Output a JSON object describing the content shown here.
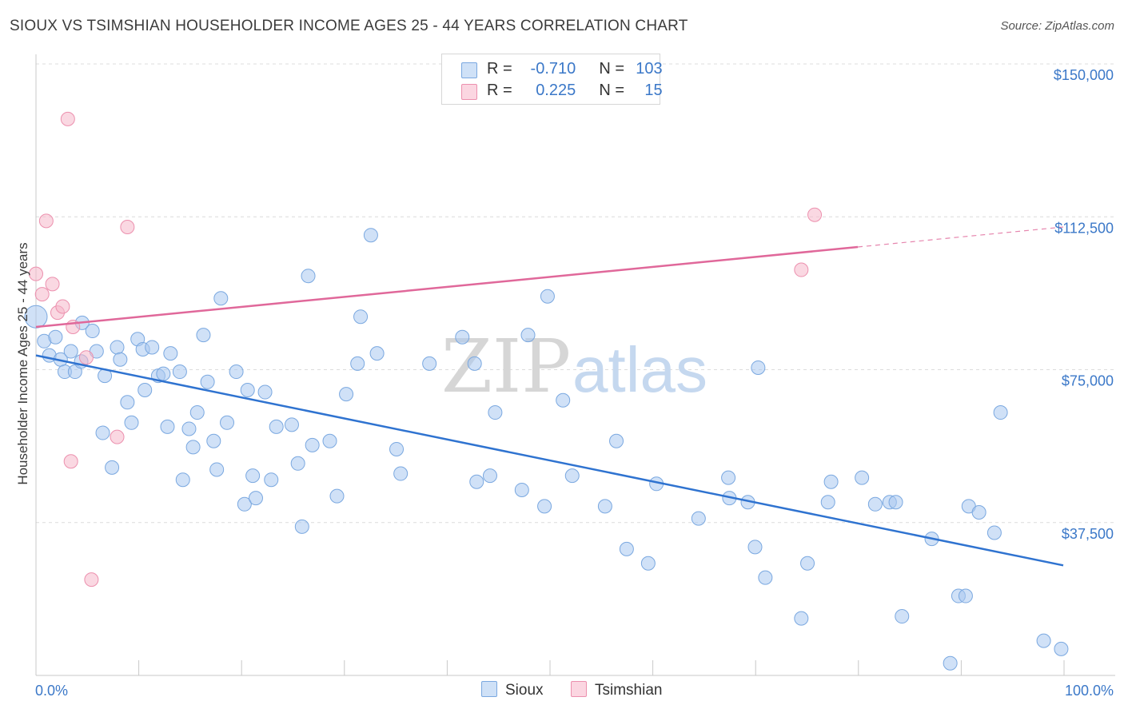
{
  "header": {
    "title": "SIOUX VS TSIMSHIAN HOUSEHOLDER INCOME AGES 25 - 44 YEARS CORRELATION CHART",
    "source": "Source: ZipAtlas.com"
  },
  "watermark": {
    "zip": "ZIP",
    "atlas": "atlas"
  },
  "legend": {
    "rows": [
      {
        "r_label": "R =",
        "r_value": "-0.710",
        "n_label": "N =",
        "n_value": "103",
        "color": "#a9c9f1"
      },
      {
        "r_label": "R =",
        "r_value": "0.225",
        "n_label": "N =",
        "n_value": "15",
        "color": "#f6b8cb"
      }
    ]
  },
  "chart_data": {
    "type": "scatter",
    "title": "SIOUX VS TSIMSHIAN HOUSEHOLDER INCOME AGES 25 - 44 YEARS CORRELATION CHART",
    "ylabel": "Householder Income Ages 25 - 44 years",
    "xlabel": "",
    "xlim": [
      0,
      100
    ],
    "ylim": [
      0,
      155000
    ],
    "x_tick_labels": [
      "0.0%",
      "100.0%"
    ],
    "y_ticks": [
      37500,
      75000,
      112500,
      150000
    ],
    "y_tick_labels": [
      "$37,500",
      "$75,000",
      "$112,500",
      "$150,000"
    ],
    "grid": true,
    "legend_position": "top-center",
    "series": [
      {
        "name": "Sioux",
        "color": "#a9c9f1",
        "stroke": "#7aa8e0",
        "trend_color": "#2f73d0",
        "trend": {
          "x": [
            0,
            100
          ],
          "y": [
            78500,
            27000
          ],
          "dashed_from": null
        },
        "points": [
          [
            0,
            88000
          ],
          [
            0.8,
            82000
          ],
          [
            1.3,
            78500
          ],
          [
            1.9,
            83000
          ],
          [
            2.4,
            77500
          ],
          [
            2.8,
            74500
          ],
          [
            3.4,
            79500
          ],
          [
            3.8,
            74500
          ],
          [
            4.4,
            77000
          ],
          [
            4.5,
            86500
          ],
          [
            5.5,
            84500
          ],
          [
            5.9,
            79500
          ],
          [
            6.5,
            59500
          ],
          [
            6.7,
            73500
          ],
          [
            7.4,
            51000
          ],
          [
            7.9,
            80500
          ],
          [
            8.2,
            77500
          ],
          [
            8.9,
            67000
          ],
          [
            9.3,
            62000
          ],
          [
            9.9,
            82500
          ],
          [
            10.4,
            80000
          ],
          [
            10.6,
            70000
          ],
          [
            11.3,
            80500
          ],
          [
            11.9,
            73500
          ],
          [
            12.4,
            74000
          ],
          [
            12.8,
            61000
          ],
          [
            13.1,
            79000
          ],
          [
            14,
            74500
          ],
          [
            14.3,
            48000
          ],
          [
            14.9,
            60500
          ],
          [
            15.3,
            56000
          ],
          [
            15.7,
            64500
          ],
          [
            16.3,
            83500
          ],
          [
            16.7,
            72000
          ],
          [
            17.3,
            57500
          ],
          [
            17.6,
            50500
          ],
          [
            18,
            92500
          ],
          [
            18.6,
            62000
          ],
          [
            19.5,
            74500
          ],
          [
            20.3,
            42000
          ],
          [
            20.6,
            70000
          ],
          [
            21.1,
            49000
          ],
          [
            21.4,
            43500
          ],
          [
            22.3,
            69500
          ],
          [
            22.9,
            48000
          ],
          [
            23.4,
            61000
          ],
          [
            24.9,
            61500
          ],
          [
            25.5,
            52000
          ],
          [
            25.9,
            36500
          ],
          [
            26.5,
            98000
          ],
          [
            26.9,
            56500
          ],
          [
            28.6,
            57500
          ],
          [
            29.3,
            44000
          ],
          [
            30.2,
            69000
          ],
          [
            31.3,
            76500
          ],
          [
            31.6,
            88000
          ],
          [
            32.6,
            108000
          ],
          [
            33.2,
            79000
          ],
          [
            35.1,
            55500
          ],
          [
            35.5,
            49500
          ],
          [
            38.3,
            76500
          ],
          [
            41.5,
            83000
          ],
          [
            42.7,
            76500
          ],
          [
            42.9,
            47500
          ],
          [
            44.2,
            49000
          ],
          [
            44.7,
            64500
          ],
          [
            47.3,
            45500
          ],
          [
            47.9,
            83500
          ],
          [
            49.5,
            41500
          ],
          [
            49.8,
            93000
          ],
          [
            51.3,
            67500
          ],
          [
            52.2,
            49000
          ],
          [
            55.4,
            41500
          ],
          [
            56.5,
            57500
          ],
          [
            57.5,
            31000
          ],
          [
            59.6,
            27500
          ],
          [
            60.4,
            47000
          ],
          [
            64.5,
            38500
          ],
          [
            67.4,
            48500
          ],
          [
            67.5,
            43500
          ],
          [
            69.3,
            42500
          ],
          [
            70,
            31500
          ],
          [
            70.3,
            75500
          ],
          [
            71,
            24000
          ],
          [
            74.5,
            14000
          ],
          [
            75.1,
            27500
          ],
          [
            77.1,
            42500
          ],
          [
            77.4,
            47500
          ],
          [
            80.4,
            48500
          ],
          [
            81.7,
            42000
          ],
          [
            83.1,
            42500
          ],
          [
            83.7,
            42500
          ],
          [
            84.3,
            14500
          ],
          [
            87.2,
            33500
          ],
          [
            89,
            3000
          ],
          [
            89.8,
            19500
          ],
          [
            90.5,
            19500
          ],
          [
            90.8,
            41500
          ],
          [
            91.8,
            40000
          ],
          [
            93.3,
            35000
          ],
          [
            93.9,
            64500
          ],
          [
            98.1,
            8500
          ],
          [
            99.8,
            6500
          ]
        ]
      },
      {
        "name": "Tsimshian",
        "color": "#f6b8cb",
        "stroke": "#ec90ae",
        "trend_color": "#e0689a",
        "trend": {
          "x": [
            0,
            100
          ],
          "y": [
            85500,
            110000
          ],
          "dashed_from": 80
        },
        "points": [
          [
            0,
            98500
          ],
          [
            0.6,
            93500
          ],
          [
            1,
            111500
          ],
          [
            1.6,
            96000
          ],
          [
            2.1,
            89000
          ],
          [
            2.6,
            90500
          ],
          [
            3.1,
            136500
          ],
          [
            3.4,
            52500
          ],
          [
            3.6,
            85500
          ],
          [
            4.9,
            78000
          ],
          [
            5.4,
            23500
          ],
          [
            7.9,
            58500
          ],
          [
            8.9,
            110000
          ],
          [
            75.8,
            113000
          ],
          [
            74.5,
            99500
          ]
        ]
      }
    ]
  }
}
